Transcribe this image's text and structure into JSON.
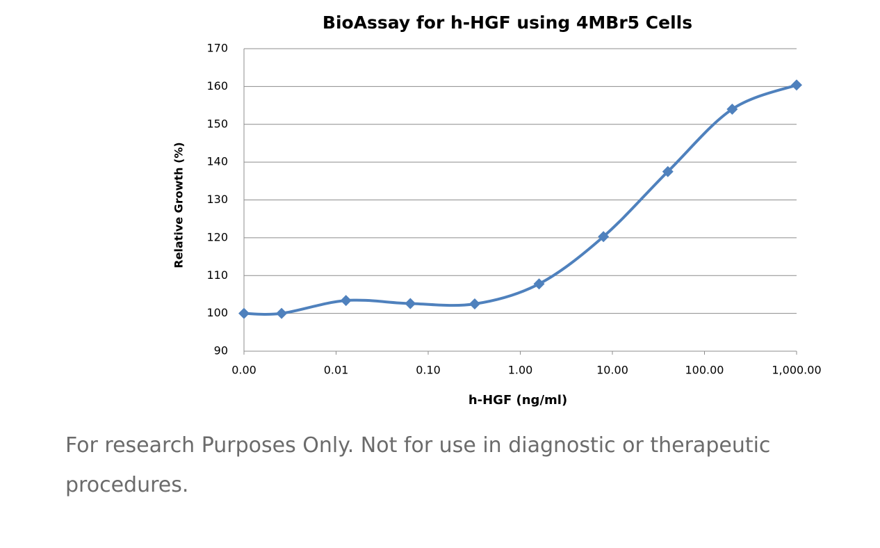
{
  "chart_data": {
    "type": "line",
    "title": "BioAssay for h-HGF using 4MBr5 Cells",
    "x_label": "h-HGF (ng/ml)",
    "y_label": "Relative Growth (%)",
    "x_scale": "log",
    "grid": true,
    "smooth": true,
    "marker": "diamond",
    "x": [
      0.001,
      0.00256,
      0.0128,
      0.064,
      0.32,
      1.6,
      8,
      40,
      200,
      1000
    ],
    "series": [
      {
        "name": "h-HGF",
        "color": "#4f81bd",
        "values": [
          100,
          100,
          103.4,
          102.6,
          102.5,
          107.8,
          120.3,
          137.5,
          154,
          160.4
        ]
      }
    ],
    "xlim": [
      0.001,
      1000
    ],
    "xticks": [
      {
        "value": 0.001,
        "label": "0.00"
      },
      {
        "value": 0.01,
        "label": "0.01"
      },
      {
        "value": 0.1,
        "label": "0.10"
      },
      {
        "value": 1,
        "label": "1.00"
      },
      {
        "value": 10,
        "label": "10.00"
      },
      {
        "value": 100,
        "label": "100.00"
      },
      {
        "value": 1000,
        "label": "1,000.00"
      }
    ],
    "ylim": [
      90,
      170
    ],
    "yticks": [
      90,
      100,
      110,
      120,
      130,
      140,
      150,
      160,
      170
    ]
  },
  "caption": "For research Purposes Only. Not for use in diagnostic or therapeutic procedures."
}
